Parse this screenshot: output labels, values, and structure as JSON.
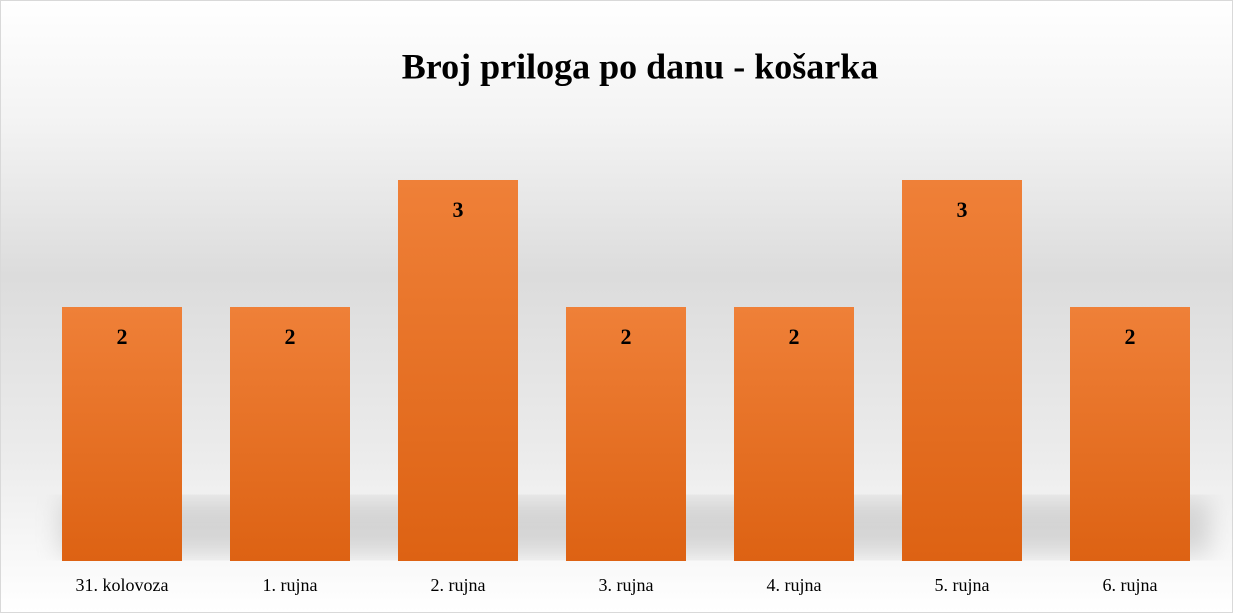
{
  "chart_data": {
    "type": "bar",
    "title": "Broj priloga po danu - košarka",
    "categories": [
      "31. kolovoza",
      "1. rujna",
      "2. rujna",
      "3. rujna",
      "4. rujna",
      "5. rujna",
      "6. rujna"
    ],
    "values": [
      2,
      2,
      3,
      2,
      2,
      3,
      2
    ],
    "color": "#ed7d31",
    "ylim": [
      0,
      4
    ],
    "grid": false
  }
}
